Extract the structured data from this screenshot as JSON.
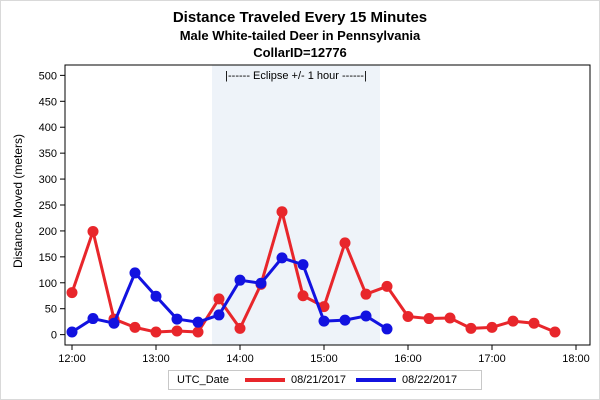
{
  "colors": {
    "series1": "#e8262b",
    "series2": "#1212e0",
    "band": "#eef3f9"
  },
  "chart_data": {
    "type": "line",
    "title": "Distance Traveled Every 15 Minutes",
    "subtitle": "Male White-tailed Deer in Pennsylvania",
    "subtitle2": "CollarID=12776",
    "xlabel": "",
    "ylabel": "Distance Moved (meters)",
    "ylim": [
      -20,
      520
    ],
    "yticks": [
      0,
      50,
      100,
      150,
      200,
      250,
      300,
      350,
      400,
      450,
      500
    ],
    "xlim": [
      "11:55",
      "18:10"
    ],
    "xticks": [
      "12:00",
      "13:00",
      "14:00",
      "15:00",
      "16:00",
      "17:00",
      "18:00"
    ],
    "grid": false,
    "legend_position": "bottom",
    "legend_title": "UTC_Date",
    "band": {
      "start": "13:40",
      "end": "15:40",
      "label": "|------  Eclipse +/- 1 hour  ------|"
    },
    "series": [
      {
        "name": "08/21/2017",
        "color": "#e8262b",
        "x": [
          "12:00",
          "12:15",
          "12:30",
          "12:45",
          "13:00",
          "13:15",
          "13:30",
          "13:45",
          "14:00",
          "14:15",
          "14:30",
          "14:45",
          "15:00",
          "15:15",
          "15:30",
          "15:45",
          "16:00",
          "16:15",
          "16:30",
          "16:45",
          "17:00",
          "17:15",
          "17:30",
          "17:45"
        ],
        "values": [
          81,
          199,
          30,
          14,
          5,
          7,
          5,
          69,
          12,
          97,
          237,
          75,
          54,
          177,
          78,
          93,
          35,
          31,
          32,
          12,
          14,
          26,
          22,
          5
        ]
      },
      {
        "name": "08/22/2017",
        "color": "#1212e0",
        "x": [
          "12:00",
          "12:15",
          "12:30",
          "12:45",
          "13:00",
          "13:15",
          "13:30",
          "13:45",
          "14:00",
          "14:15",
          "14:30",
          "14:45",
          "15:00",
          "15:15",
          "15:30",
          "15:45"
        ],
        "values": [
          5,
          31,
          22,
          119,
          74,
          30,
          24,
          38,
          105,
          99,
          148,
          135,
          26,
          28,
          36,
          11
        ]
      }
    ]
  }
}
